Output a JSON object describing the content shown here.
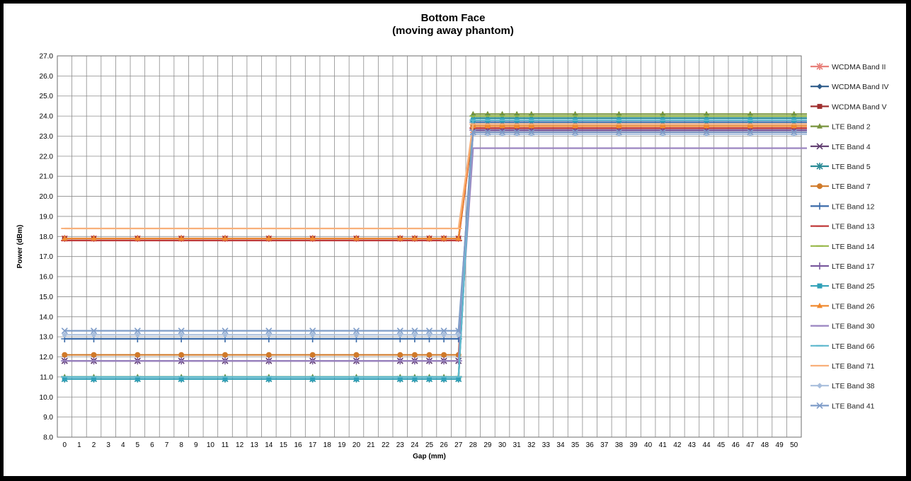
{
  "chart_data": {
    "type": "line",
    "title": [
      "Bottom Face",
      "(moving away phantom)"
    ],
    "xlabel": "Gap (mm)",
    "ylabel": "Power (dBm)",
    "x_categories": [
      0,
      1,
      2,
      3,
      4,
      5,
      6,
      7,
      8,
      9,
      10,
      11,
      12,
      13,
      14,
      15,
      16,
      17,
      18,
      19,
      20,
      21,
      22,
      23,
      24,
      25,
      26,
      27,
      28,
      29,
      30,
      31,
      32,
      33,
      34,
      35,
      36,
      37,
      38,
      39,
      40,
      41,
      42,
      43,
      44,
      45,
      46,
      47,
      48,
      49,
      50
    ],
    "x_points": [
      0,
      2,
      5,
      8,
      11,
      14,
      17,
      20,
      23,
      24,
      25,
      26,
      27,
      28,
      29,
      30,
      31,
      32,
      35,
      38,
      41,
      44,
      47,
      50
    ],
    "ylim": [
      8.0,
      27.0
    ],
    "ytick_step": 1.0,
    "grid": true,
    "legend_position": "right",
    "series": [
      {
        "name": "WCDMA Band II",
        "color": "#E8807A",
        "marker": "asterisk",
        "before": 17.9,
        "after": 23.3
      },
      {
        "name": "WCDMA Band IV",
        "color": "#2E5C8A",
        "marker": "diamond",
        "before": 17.9,
        "after": 23.6
      },
      {
        "name": "WCDMA Band V",
        "color": "#A03030",
        "marker": "square",
        "before": 17.9,
        "after": 23.4
      },
      {
        "name": "LTE Band 2",
        "color": "#77933C",
        "marker": "triangle",
        "before": 11.0,
        "after": 24.1
      },
      {
        "name": "LTE Band 4",
        "color": "#5E3A6E",
        "marker": "x",
        "before": 11.8,
        "after": 23.2
      },
      {
        "name": "LTE Band 5",
        "color": "#2A8A96",
        "marker": "asterisk",
        "before": 10.9,
        "after": 23.9
      },
      {
        "name": "LTE Band 7",
        "color": "#D07A2A",
        "marker": "circle",
        "before": 12.1,
        "after": 23.5
      },
      {
        "name": "LTE Band 12",
        "color": "#3A6AA8",
        "marker": "plus",
        "before": 12.9,
        "after": 23.7
      },
      {
        "name": "LTE Band 13",
        "color": "#C03A3A",
        "marker": "dash",
        "before": 17.8,
        "after": 23.4
      },
      {
        "name": "LTE Band 14",
        "color": "#98B84A",
        "marker": "dash",
        "before": 11.0,
        "after": 24.0
      },
      {
        "name": "LTE Band 17",
        "color": "#7A5A9E",
        "marker": "plus",
        "before": 11.8,
        "after": 23.3
      },
      {
        "name": "LTE Band 25",
        "color": "#30A0B8",
        "marker": "square",
        "before": 10.9,
        "after": 23.8
      },
      {
        "name": "LTE Band 26",
        "color": "#F08A30",
        "marker": "triangle",
        "before": 17.9,
        "after": 23.5
      },
      {
        "name": "LTE Band 30",
        "color": "#9A84C0",
        "marker": "dash",
        "before": 11.8,
        "after": 22.4
      },
      {
        "name": "LTE Band 66",
        "color": "#5EB8CE",
        "marker": "dash",
        "before": 11.0,
        "after": 23.8
      },
      {
        "name": "LTE Band 71",
        "color": "#F8B07A",
        "marker": "dash",
        "before": 18.4,
        "after": 23.6
      },
      {
        "name": "LTE Band 38",
        "color": "#A8BEDC",
        "marker": "diamond",
        "before": 13.1,
        "after": 23.1
      },
      {
        "name": "LTE Band 41",
        "color": "#7E9CC8",
        "marker": "x",
        "before": 13.3,
        "after": 23.2
      }
    ]
  }
}
